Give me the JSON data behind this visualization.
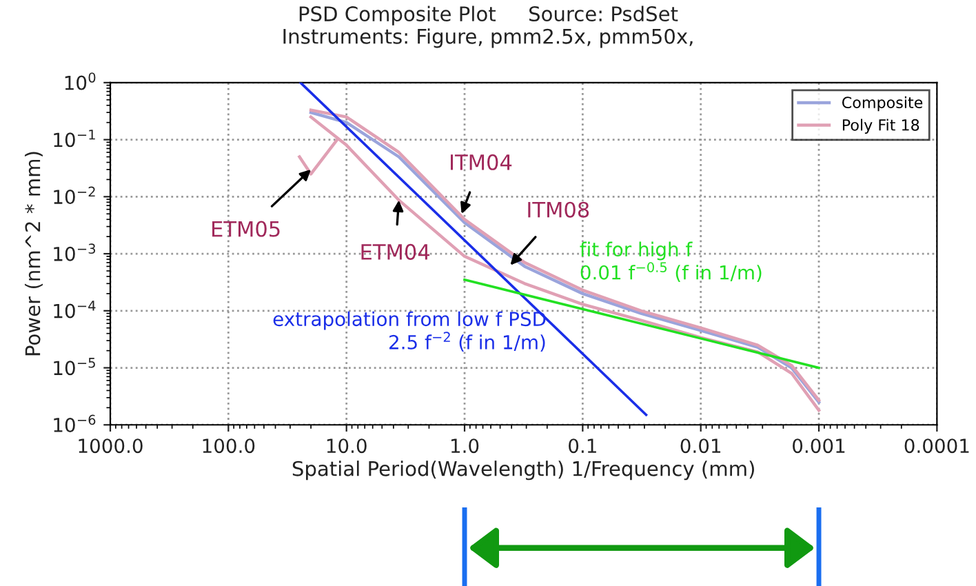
{
  "chart_data": {
    "type": "line",
    "title": "PSD Composite Plot     Source: PsdSet",
    "subtitle": "Instruments: Figure, pmm2.5x, pmm50x,",
    "xlabel": "Spatial Period(Wavelength) 1/Frequency (mm)",
    "ylabel": "Power (nm^2 * mm)",
    "log": "xy",
    "xlim": [
      1000,
      0.0001
    ],
    "ylim": [
      1e-06,
      1
    ],
    "xticks": [
      {
        "value": 1000,
        "label": "1000.0"
      },
      {
        "value": 100,
        "label": "100.0"
      },
      {
        "value": 10,
        "label": "10.0"
      },
      {
        "value": 1,
        "label": "1.0"
      },
      0.1,
      0.01,
      0.001,
      0.0001
    ],
    "yticks": [
      {
        "value": 1,
        "label": "10$^{0}$"
      },
      {
        "value": 0.1,
        "label": "10$^{−1}$"
      },
      {
        "value": 0.01,
        "label": "10$^{−2}$"
      },
      {
        "value": 0.001,
        "label": "10$^{−3}$"
      },
      {
        "value": 0.0001,
        "label": "10$^{−4}$"
      },
      {
        "value": 1e-05,
        "label": "10$^{−5}$"
      },
      {
        "value": 1e-06,
        "label": "10$^{−6}$"
      }
    ],
    "grid": true,
    "legend": "top right",
    "line_style": "solid",
    "marker": "none",
    "series": [
      {
        "name": "Composite",
        "color": "#9aa4dc",
        "x": [
          20,
          10,
          3.6,
          1,
          0.31,
          0.1,
          0.032,
          0.01,
          0.0033,
          0.0017,
          0.001
        ],
        "values": [
          0.3,
          0.2,
          0.05,
          0.0035,
          0.0006,
          0.0002,
          9e-05,
          4.5e-05,
          2.3e-05,
          1e-05,
          2.5e-06
        ]
      },
      {
        "name": "Poly Fit 18",
        "color": "#e0a0b4",
        "x": [
          20,
          10,
          3.6,
          1,
          0.31,
          0.1,
          0.032,
          0.01,
          0.0033,
          0.0017,
          0.001
        ],
        "values": [
          0.33,
          0.25,
          0.06,
          0.004,
          0.0007,
          0.00023,
          0.0001,
          5e-05,
          2.5e-05,
          1.1e-05,
          2.7e-06
        ]
      },
      {
        "color": "#e0a0b4",
        "x": [
          20,
          10,
          3.6,
          1,
          0.31,
          0.1,
          0.032,
          0.01,
          0.0033,
          0.0017,
          0.001
        ],
        "values": [
          0.25,
          0.08,
          0.0087,
          0.0009,
          0.0003,
          0.00013,
          6.8e-05,
          3.4e-05,
          1.9e-05,
          8e-06,
          1.8e-06
        ]
      },
      {
        "color": "#e0a0b4",
        "x": [
          25,
          20,
          12
        ],
        "values": [
          0.05,
          0.025,
          0.1
        ]
      },
      {
        "name": "extrapolation from low f PSD\n2.5 f$^{−2}$ (f in 1/m)",
        "color": "#1a2ee8",
        "x": [
          24.5,
          0.029
        ],
        "values": [
          1,
          1.5e-06
        ]
      },
      {
        "name": "fit for high f\n0.01 f$^{−0.5}$ (f in 1/m)",
        "color": "#22e022",
        "x": [
          1,
          0.001
        ],
        "values": [
          0.00035,
          1e-05
        ]
      }
    ],
    "annotations": [
      {
        "text": "ETM05",
        "x": 20,
        "y": 0.03
      },
      {
        "text": "ETM04",
        "x": 3.6,
        "y": 0.0087
      },
      {
        "text": "ITM04",
        "x": 1.06,
        "y": 0.005
      },
      {
        "text": "ITM08",
        "x": 0.41,
        "y": 0.00063
      }
    ]
  }
}
